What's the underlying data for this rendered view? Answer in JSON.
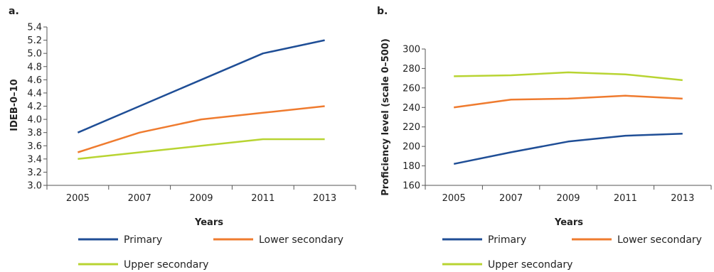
{
  "chart_data": [
    {
      "type": "line",
      "panel_label": "a.",
      "xlabel": "Years",
      "ylabel": "IDEB-0–10",
      "categories": [
        "2005",
        "2007",
        "2009",
        "2011",
        "2013"
      ],
      "ylim": [
        3.0,
        5.4
      ],
      "yticks": [
        "3.0",
        "3.2",
        "3.4",
        "3.6",
        "3.8",
        "4.0",
        "4.2",
        "4.4",
        "4.6",
        "4.8",
        "5.0",
        "5.2",
        "5.4"
      ],
      "series": [
        {
          "name": "Primary",
          "color": "#1f4e96",
          "values": [
            3.8,
            4.2,
            4.6,
            5.0,
            5.2
          ]
        },
        {
          "name": "Lower secondary",
          "color": "#ef7b2f",
          "values": [
            3.5,
            3.8,
            4.0,
            4.1,
            4.2
          ]
        },
        {
          "name": "Upper secondary",
          "color": "#b8d432",
          "values": [
            3.4,
            3.5,
            3.6,
            3.7,
            3.7
          ]
        }
      ],
      "legend_position": "bottom"
    },
    {
      "type": "line",
      "panel_label": "b.",
      "xlabel": "Years",
      "ylabel": "Proficiency level (scale 0–500)",
      "categories": [
        "2005",
        "2007",
        "2009",
        "2011",
        "2013"
      ],
      "ylim": [
        160,
        300
      ],
      "yticks": [
        "160",
        "180",
        "200",
        "220",
        "240",
        "260",
        "280",
        "300"
      ],
      "series": [
        {
          "name": "Primary",
          "color": "#1f4e96",
          "values": [
            182,
            194,
            205,
            211,
            213
          ]
        },
        {
          "name": "Lower secondary",
          "color": "#ef7b2f",
          "values": [
            240,
            248,
            249,
            252,
            249
          ]
        },
        {
          "name": "Upper secondary",
          "color": "#b8d432",
          "values": [
            272,
            273,
            276,
            274,
            268
          ]
        }
      ],
      "legend_position": "bottom"
    }
  ]
}
